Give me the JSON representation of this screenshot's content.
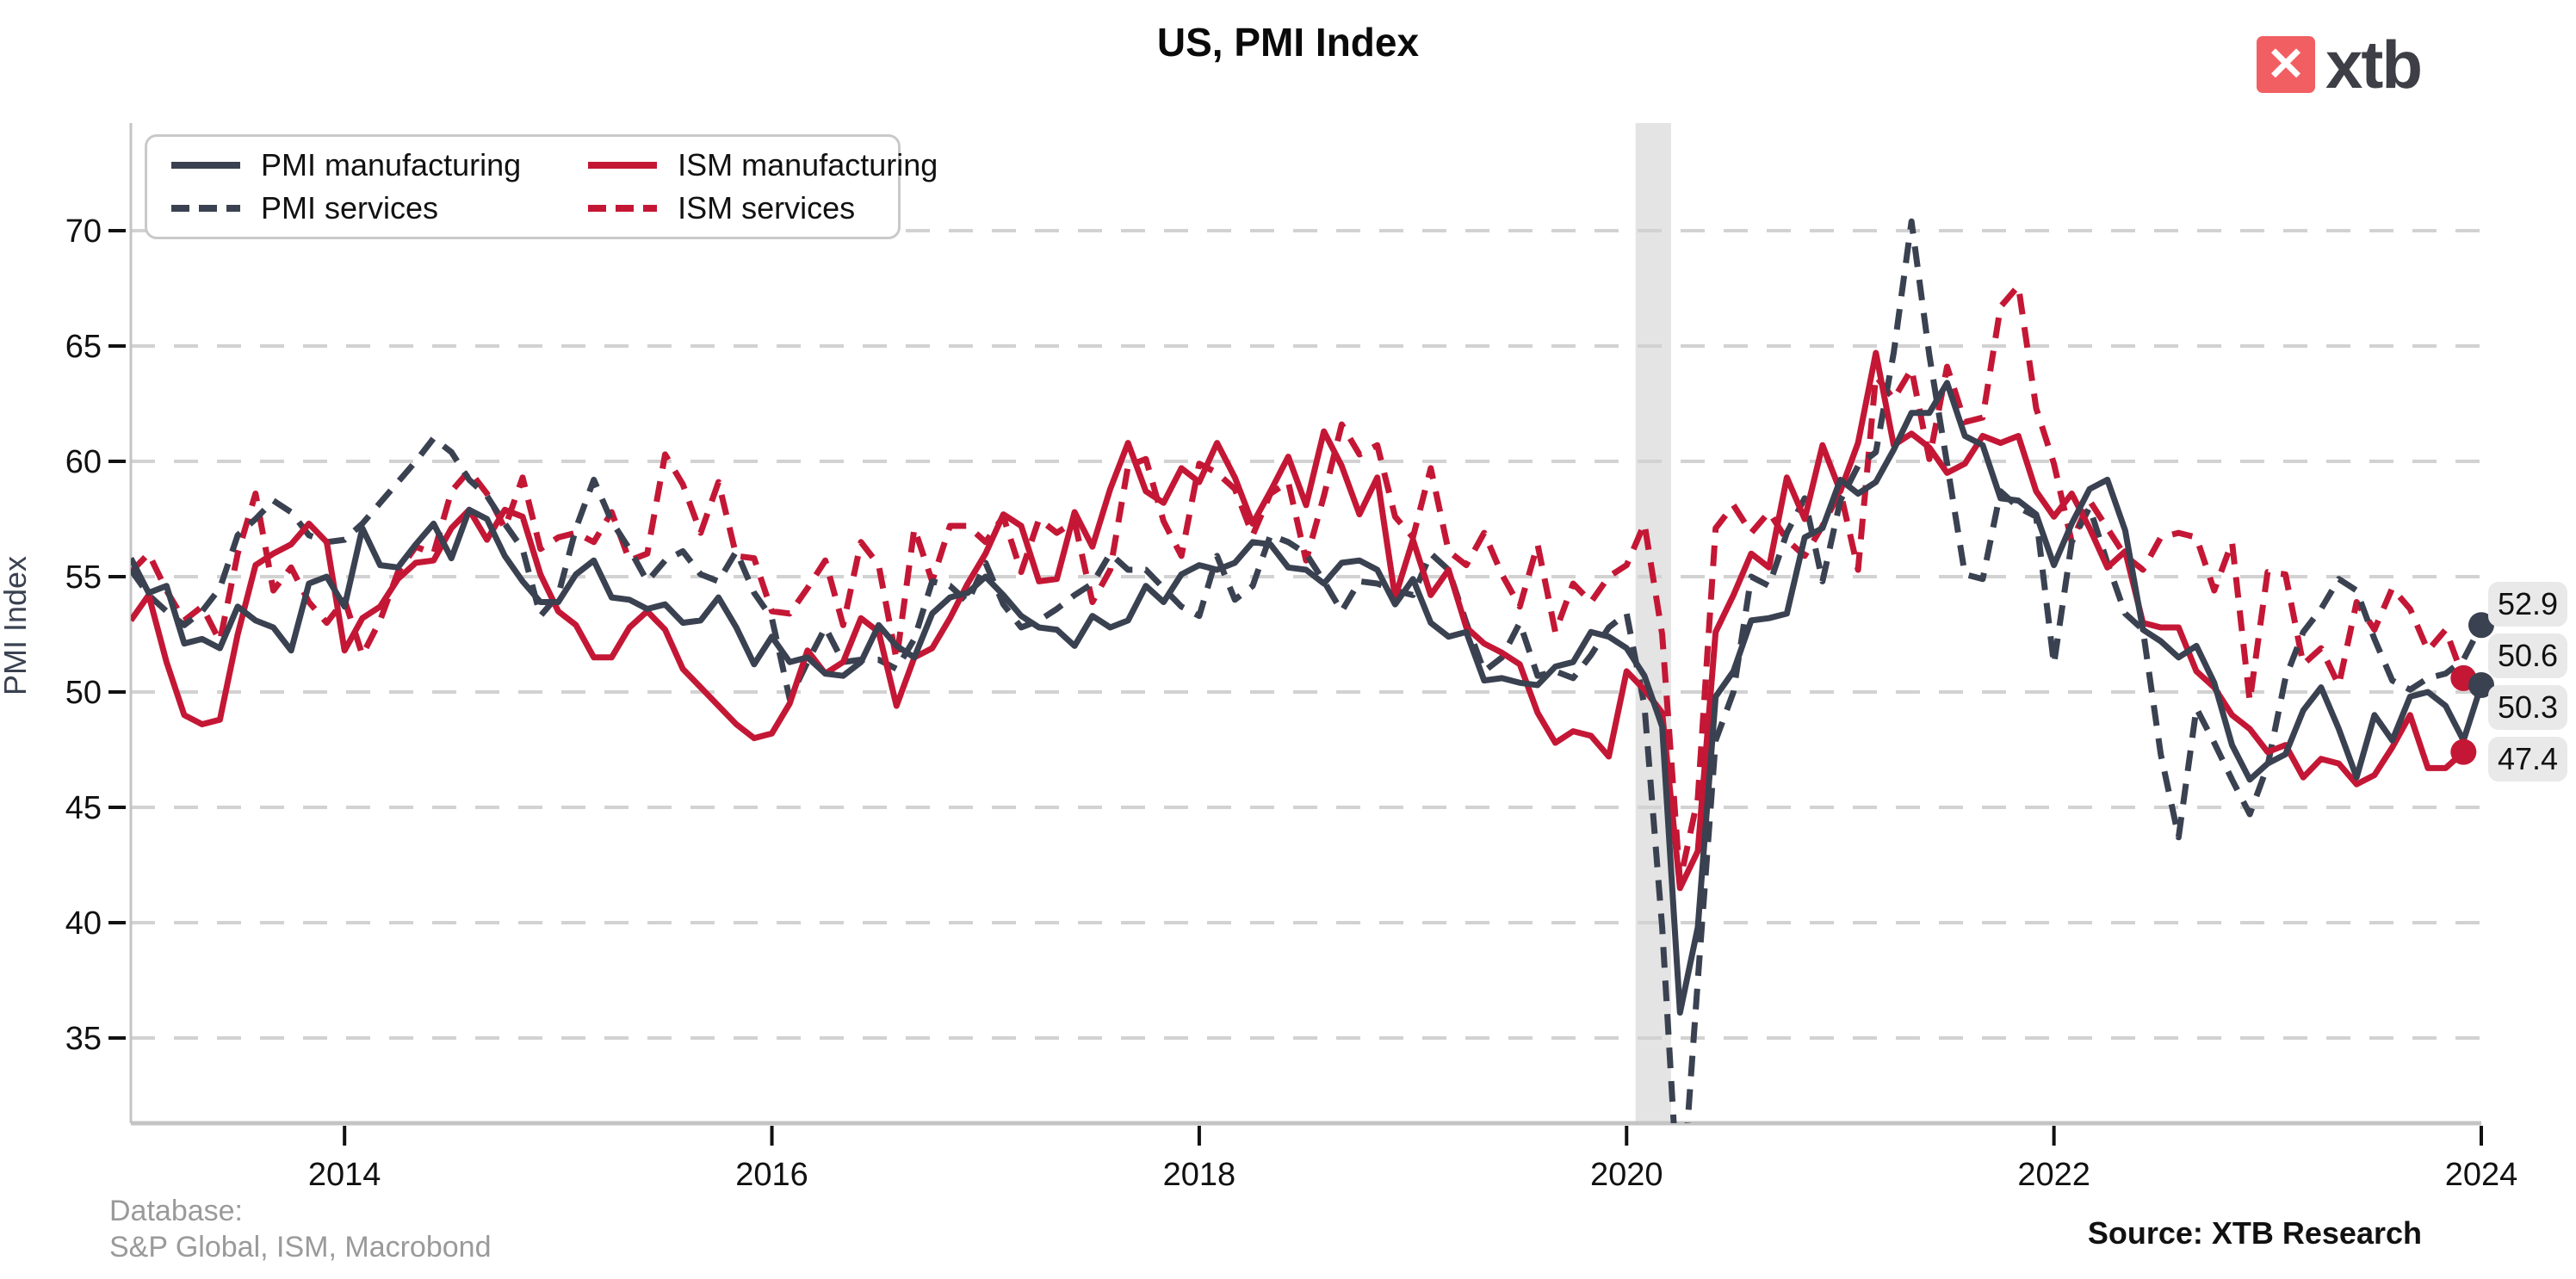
{
  "title": "US, PMI Index",
  "logo": {
    "text": "xtb",
    "mark_glyph": "✕",
    "accent_color": "#f15f63",
    "text_color": "#3e3e46"
  },
  "legend": {
    "items": [
      {
        "id": "pmi_manufacturing",
        "label": "PMI manufacturing",
        "color": "#3a4150",
        "style": "solid"
      },
      {
        "id": "pmi_services",
        "label": "PMI services",
        "color": "#3a4150",
        "style": "dashed"
      },
      {
        "id": "ism_manufacturing",
        "label": "ISM manufacturing",
        "color": "#c41735",
        "style": "solid"
      },
      {
        "id": "ism_services",
        "label": "ISM services",
        "color": "#c41735",
        "style": "dashed"
      }
    ]
  },
  "y_axis": {
    "label": "PMI Index",
    "ticks": [
      35,
      40,
      45,
      50,
      55,
      60,
      65,
      70
    ]
  },
  "x_axis": {
    "ticks": [
      2014,
      2016,
      2018,
      2020,
      2022,
      2024
    ]
  },
  "end_labels": [
    {
      "value": "52.9",
      "series_id": "pmi_services"
    },
    {
      "value": "50.6",
      "series_id": "ism_services"
    },
    {
      "value": "50.3",
      "series_id": "pmi_manufacturing"
    },
    {
      "value": "47.4",
      "series_id": "ism_manufacturing"
    }
  ],
  "footer": {
    "database_label": "Database:",
    "database_sources": "S&P Global, ISM, Macrobond",
    "source": "Source: XTB Research"
  },
  "colors": {
    "dark": "#3a4150",
    "red": "#c41735",
    "grid": "#d2d2d2",
    "axis": "#c4c4c4",
    "band": "#e4e4e4",
    "label_box": "#e9e9e9",
    "tick": "#111111"
  },
  "chart_data": {
    "type": "line",
    "x_start": 2013.0,
    "frequency": "monthly",
    "xlim": [
      2013.0,
      2024.0
    ],
    "ylim": [
      31.3,
      74.7
    ],
    "grid": true,
    "legend_position": "top-left",
    "recession_band": {
      "from": 2020.042,
      "to": 2020.208
    },
    "series": [
      {
        "id": "ism_services",
        "name": "ISM services",
        "color": "#c41735",
        "style": "dashed",
        "values": [
          55.2,
          56.0,
          54.4,
          53.1,
          53.7,
          52.2,
          56.0,
          58.6,
          54.4,
          55.4,
          53.9,
          53.0,
          54.0,
          51.6,
          53.1,
          55.2,
          56.3,
          56.0,
          58.7,
          59.6,
          58.6,
          57.1,
          59.3,
          56.2,
          56.7,
          56.9,
          56.5,
          57.8,
          55.7,
          56.0,
          60.3,
          59.0,
          56.9,
          59.1,
          55.9,
          55.8,
          53.5,
          53.4,
          54.5,
          55.7,
          52.9,
          56.5,
          55.5,
          51.4,
          57.1,
          54.8,
          57.2,
          57.2,
          56.5,
          57.6,
          55.2,
          57.5,
          56.9,
          57.4,
          53.9,
          55.3,
          59.8,
          60.1,
          57.4,
          55.9,
          59.9,
          59.5,
          58.8,
          56.8,
          58.6,
          59.1,
          55.7,
          58.5,
          61.6,
          60.3,
          60.7,
          57.6,
          56.7,
          59.7,
          56.1,
          55.5,
          56.9,
          55.1,
          53.7,
          56.4,
          52.6,
          54.7,
          53.9,
          55.0,
          55.5,
          57.3,
          52.5,
          41.8,
          45.4,
          57.1,
          58.1,
          56.9,
          57.8,
          56.6,
          55.9,
          57.2,
          58.7,
          55.3,
          63.7,
          62.7,
          64.0,
          60.1,
          64.1,
          61.7,
          61.9,
          66.7,
          67.6,
          62.3,
          59.9,
          56.5,
          58.3,
          57.1,
          55.9,
          55.3,
          56.7,
          56.9,
          56.7,
          54.4,
          56.5,
          49.6,
          55.2,
          55.1,
          51.2,
          51.9,
          50.3,
          53.9,
          52.7,
          54.5,
          53.6,
          51.8,
          52.7,
          50.6
        ]
      },
      {
        "id": "pmi_services",
        "name": "PMI services",
        "color": "#3a4150",
        "style": "dashed",
        "values": [
          55.3,
          54.2,
          53.5,
          52.9,
          53.5,
          54.5,
          56.8,
          57.5,
          58.3,
          57.8,
          56.8,
          56.5,
          56.6,
          57.3,
          58.2,
          59.1,
          60.0,
          61.0,
          60.4,
          59.2,
          58.5,
          57.3,
          56.2,
          53.3,
          54.2,
          57.1,
          59.2,
          57.4,
          56.2,
          54.8,
          55.7,
          56.1,
          55.1,
          54.8,
          56.1,
          54.3,
          53.2,
          49.7,
          51.3,
          52.8,
          51.3,
          51.4,
          51.4,
          51.0,
          52.3,
          54.8,
          54.6,
          53.9,
          55.6,
          53.8,
          52.8,
          53.1,
          53.6,
          54.2,
          54.7,
          56.0,
          55.3,
          55.3,
          54.5,
          53.7,
          53.3,
          55.9,
          54.0,
          54.6,
          56.8,
          56.5,
          56.0,
          54.8,
          53.5,
          54.8,
          54.7,
          54.4,
          54.2,
          56.0,
          55.3,
          53.0,
          50.9,
          51.5,
          53.0,
          50.7,
          50.9,
          50.6,
          51.6,
          52.8,
          53.4,
          49.4,
          39.8,
          26.7,
          37.5,
          47.9,
          50.0,
          55.0,
          54.6,
          56.9,
          58.4,
          54.8,
          58.3,
          59.8,
          60.4,
          64.7,
          70.4,
          64.6,
          59.9,
          55.1,
          54.9,
          58.7,
          58.0,
          57.6,
          51.2,
          56.5,
          58.0,
          55.6,
          53.4,
          52.7,
          47.3,
          43.7,
          49.3,
          47.8,
          46.2,
          44.7,
          46.8,
          50.6,
          52.6,
          53.6,
          54.9,
          54.4,
          52.3,
          50.5,
          50.1,
          50.6,
          50.8,
          51.4,
          52.9
        ]
      },
      {
        "id": "ism_manufacturing",
        "name": "ISM manufacturing",
        "color": "#c41735",
        "style": "solid",
        "values": [
          53.1,
          54.2,
          51.3,
          49.0,
          48.6,
          48.8,
          52.5,
          55.5,
          56.0,
          56.4,
          57.3,
          56.5,
          51.8,
          53.2,
          53.7,
          54.9,
          55.6,
          55.7,
          57.1,
          57.9,
          56.6,
          57.9,
          57.6,
          55.1,
          53.5,
          52.9,
          51.5,
          51.5,
          52.8,
          53.5,
          52.7,
          51.0,
          50.2,
          49.4,
          48.6,
          48.0,
          48.2,
          49.5,
          51.8,
          50.8,
          51.3,
          53.2,
          52.6,
          49.4,
          51.5,
          51.9,
          53.2,
          54.7,
          56.0,
          57.7,
          57.2,
          54.8,
          54.9,
          57.8,
          56.3,
          58.8,
          60.8,
          58.7,
          58.2,
          59.7,
          59.1,
          60.8,
          59.3,
          57.3,
          58.7,
          60.2,
          58.1,
          61.3,
          59.8,
          57.7,
          59.3,
          54.1,
          56.6,
          54.2,
          55.3,
          52.8,
          52.1,
          51.7,
          51.2,
          49.1,
          47.8,
          48.3,
          48.1,
          47.2,
          50.9,
          50.1,
          49.1,
          41.5,
          43.1,
          52.6,
          54.2,
          56.0,
          55.4,
          59.3,
          57.5,
          60.7,
          58.7,
          60.8,
          64.7,
          60.7,
          61.2,
          60.6,
          59.5,
          59.9,
          61.1,
          60.8,
          61.1,
          58.7,
          57.6,
          58.6,
          57.1,
          55.4,
          56.1,
          53.0,
          52.8,
          52.8,
          50.9,
          50.2,
          49.0,
          48.4,
          47.4,
          47.7,
          46.3,
          47.1,
          46.9,
          46.0,
          46.4,
          47.6,
          49.0,
          46.7,
          46.7,
          47.4
        ]
      },
      {
        "id": "pmi_manufacturing",
        "name": "PMI manufacturing",
        "color": "#3a4150",
        "style": "solid",
        "values": [
          55.8,
          54.3,
          54.6,
          52.1,
          52.3,
          51.9,
          53.7,
          53.1,
          52.8,
          51.8,
          54.7,
          55.0,
          53.7,
          57.1,
          55.5,
          55.4,
          56.4,
          57.3,
          55.8,
          57.9,
          57.5,
          55.9,
          54.8,
          53.9,
          53.9,
          55.1,
          55.7,
          54.1,
          54.0,
          53.6,
          53.8,
          53.0,
          53.1,
          54.1,
          52.8,
          51.2,
          52.4,
          51.3,
          51.5,
          50.8,
          50.7,
          51.3,
          52.9,
          52.0,
          51.5,
          53.4,
          54.1,
          54.3,
          55.0,
          54.2,
          53.3,
          52.8,
          52.7,
          52.0,
          53.3,
          52.8,
          53.1,
          54.6,
          53.9,
          55.1,
          55.5,
          55.3,
          55.6,
          56.5,
          56.4,
          55.4,
          55.3,
          54.7,
          55.6,
          55.7,
          55.3,
          53.8,
          54.9,
          53.0,
          52.4,
          52.6,
          50.5,
          50.6,
          50.4,
          50.3,
          51.1,
          51.3,
          52.6,
          52.4,
          51.9,
          50.7,
          48.5,
          36.1,
          39.8,
          49.8,
          50.9,
          53.1,
          53.2,
          53.4,
          56.7,
          57.1,
          59.2,
          58.6,
          59.1,
          60.5,
          62.1,
          62.1,
          63.4,
          61.1,
          60.7,
          58.4,
          58.3,
          57.7,
          55.5,
          57.3,
          58.8,
          59.2,
          57.0,
          52.7,
          52.2,
          51.5,
          52.0,
          50.4,
          47.7,
          46.2,
          46.9,
          47.3,
          49.2,
          50.2,
          48.4,
          46.3,
          49.0,
          47.9,
          49.8,
          50.0,
          49.4,
          47.9,
          50.3
        ]
      }
    ]
  }
}
